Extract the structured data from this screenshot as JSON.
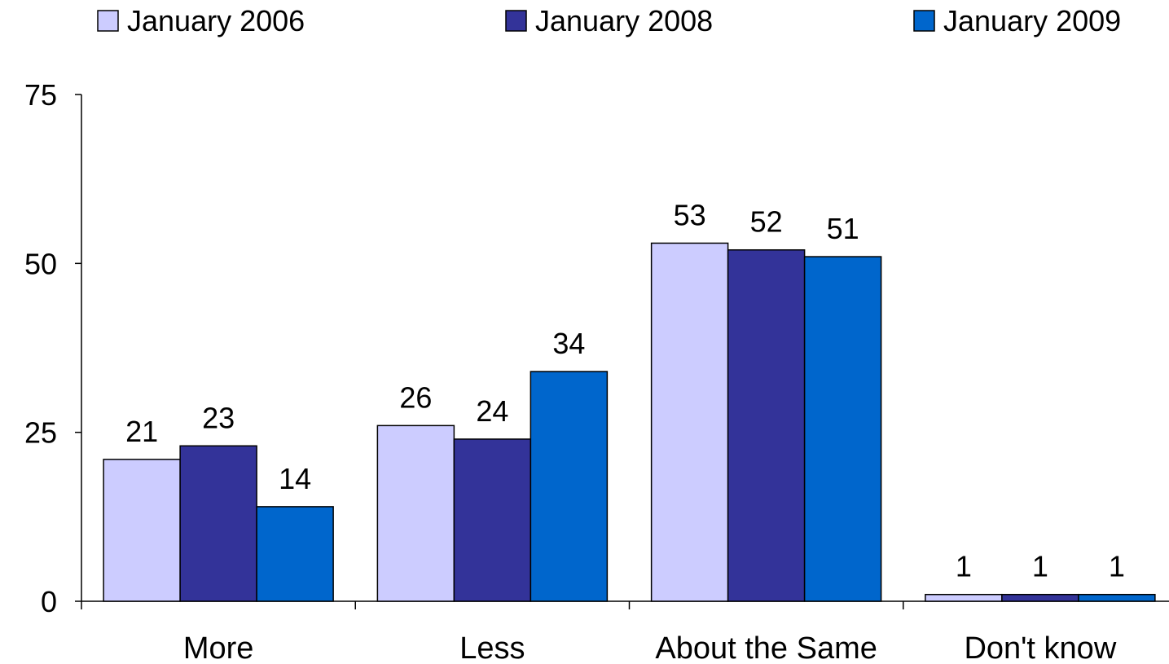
{
  "chart_data": {
    "type": "bar",
    "categories": [
      "More",
      "Less",
      "About the Same",
      "Don't know"
    ],
    "series": [
      {
        "name": "January 2006",
        "values": [
          21,
          26,
          53,
          1
        ],
        "color": "#ccccff"
      },
      {
        "name": "January 2008",
        "values": [
          23,
          24,
          52,
          1
        ],
        "color": "#333399"
      },
      {
        "name": "January 2009",
        "values": [
          14,
          34,
          51,
          1
        ],
        "color": "#0066cc"
      }
    ],
    "ylim": [
      0,
      75
    ],
    "yticks": [
      0,
      25,
      50,
      75
    ],
    "grid": false,
    "legend": "top"
  }
}
